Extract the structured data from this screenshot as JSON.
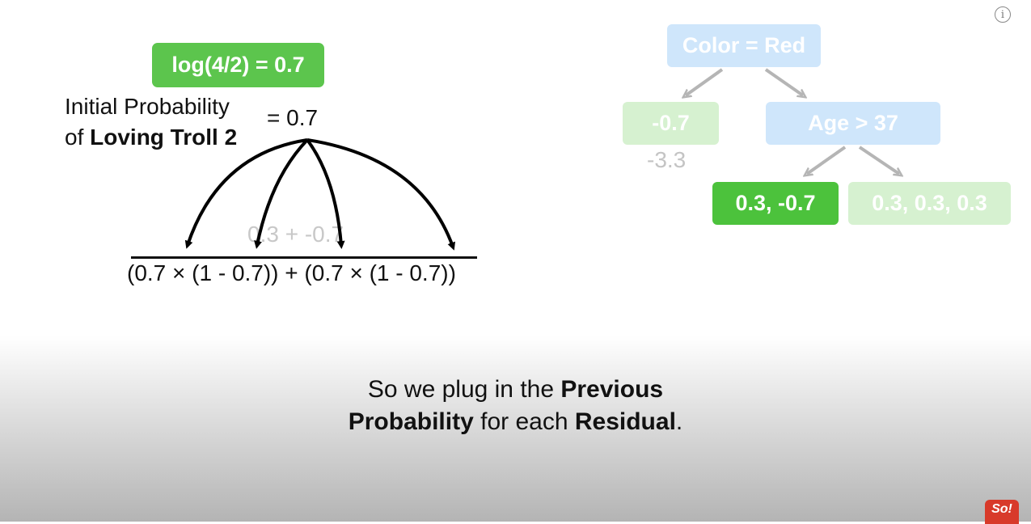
{
  "info_icon": "info-circle-icon",
  "equation": {
    "log_box": "log(4/2) = 0.7",
    "label_line1": "Initial Probability",
    "label_line2_prefix": "of ",
    "label_line2_bold": "Loving Troll 2",
    "equals": "= 0.7",
    "numerator": "0.3 + -0.7",
    "denominator": "(0.7 × (1 - 0.7)) + (0.7 × (1 - 0.7))"
  },
  "tree": {
    "root": "Color = Red",
    "left_leaf": "-0.7",
    "left_leaf_value": "-3.3",
    "age_node": "Age > 37",
    "leaf_highlighted": "0.3, -0.7",
    "leaf_right": "0.3, 0.3, 0.3"
  },
  "caption": {
    "line1_prefix": "So we plug in the ",
    "line1_bold": "Previous",
    "line2_bold1": "Probability",
    "line2_mid": " for each ",
    "line2_bold2": "Residual",
    "line2_end": "."
  },
  "logo_text": "So!",
  "colors": {
    "green_box": "#5cc54d",
    "leaf_highlight": "#4cc23c",
    "node_blue_faded": "#cfe6fb",
    "node_green_faded": "#d6f1d0"
  }
}
